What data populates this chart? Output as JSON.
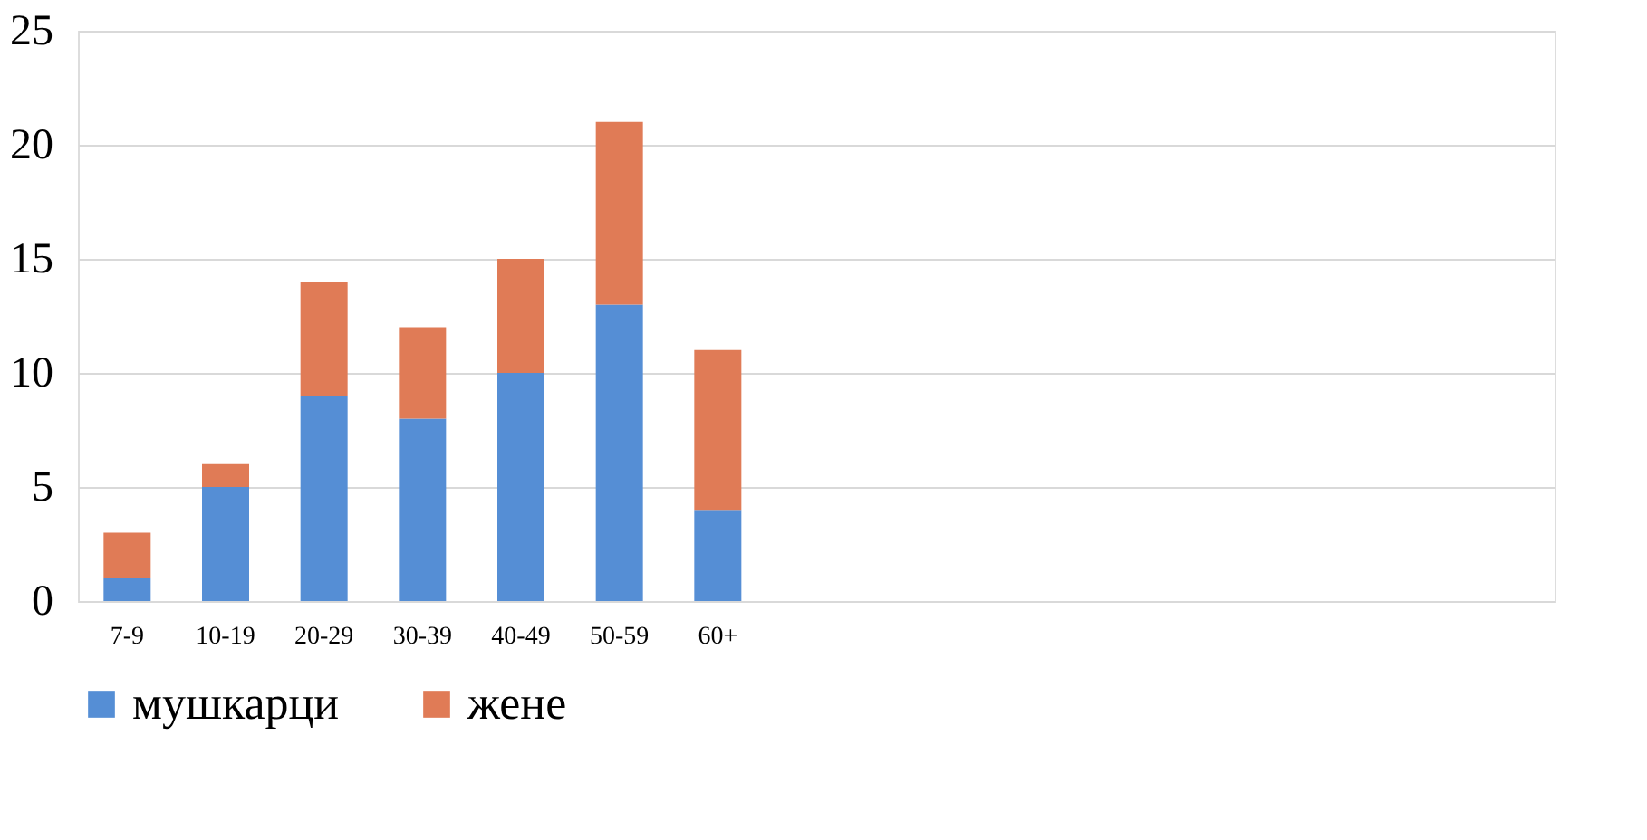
{
  "chart_data": {
    "type": "bar",
    "stacked": true,
    "categories": [
      "7-9",
      "10-19",
      "20-29",
      "30-39",
      "40-49",
      "50-59",
      "60+",
      null,
      null,
      null,
      null,
      null,
      null,
      null,
      null
    ],
    "series": [
      {
        "name": "мушкарци",
        "color": "#558ed5",
        "values": [
          1,
          5,
          9,
          8,
          10,
          13,
          4,
          null,
          null,
          null,
          null,
          null,
          null,
          null,
          null
        ]
      },
      {
        "name": "жене",
        "color": "#e07b56",
        "values": [
          2,
          1,
          5,
          4,
          5,
          8,
          7,
          null,
          null,
          null,
          null,
          null,
          null,
          null,
          null
        ]
      }
    ],
    "ylim": [
      0,
      25
    ],
    "yticks": [
      0,
      5,
      10,
      15,
      20,
      25
    ],
    "grid": "y",
    "legend": "bottom"
  }
}
